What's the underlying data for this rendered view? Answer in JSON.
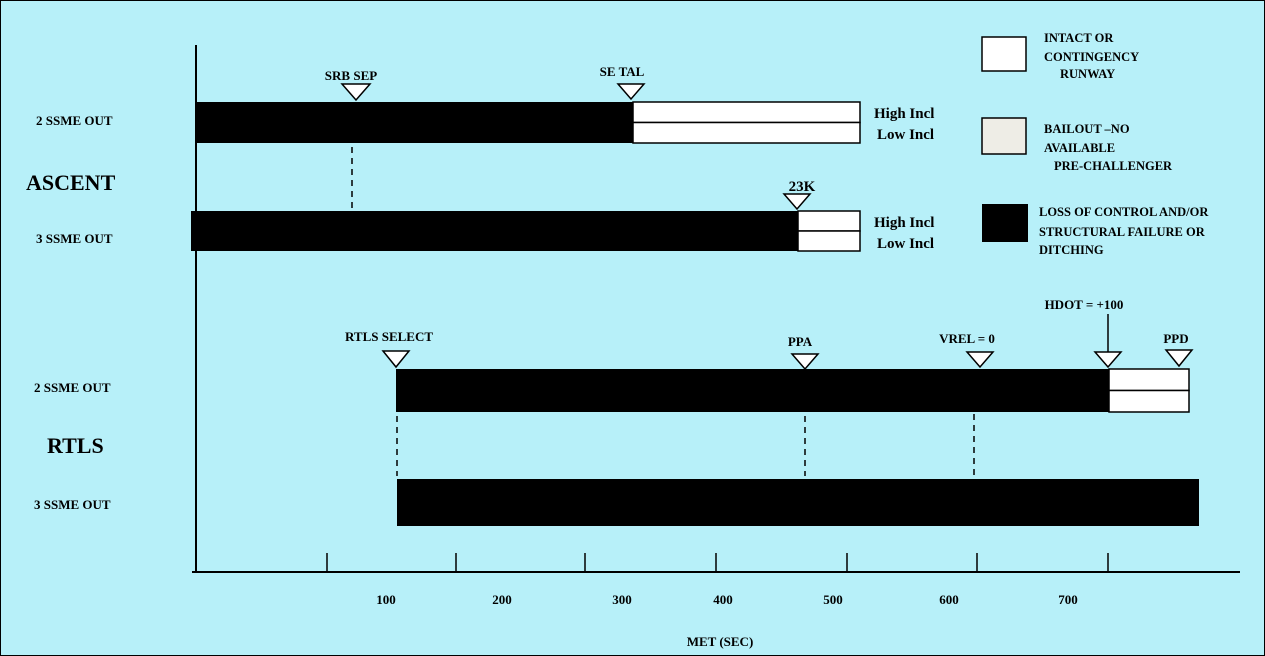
{
  "colors": {
    "background": "#b7f0f9",
    "intact": "#ffffff",
    "bailout": "#eeede6",
    "loss": "#000000"
  },
  "sections": {
    "ascent": {
      "title": "ASCENT",
      "row1_label": "2 SSME OUT",
      "row2_label": "3 SSME OUT",
      "row1_right_top": "High Incl",
      "row1_right_bottom": "Low Incl",
      "row2_right_top": "High Incl",
      "row2_right_bottom": "Low Incl",
      "markers": {
        "srb_sep": "SRB SEP",
        "se_tal": "SE TAL",
        "k23": "23K"
      }
    },
    "rtls": {
      "title": "RTLS",
      "row1_label": "2 SSME OUT",
      "row2_label": "3 SSME OUT",
      "markers": {
        "rtls_select": "RTLS SELECT",
        "ppa": "PPA",
        "vrel": "VREL = 0",
        "hdot": "HDOT = +100",
        "ppd": "PPD"
      }
    }
  },
  "legend": {
    "intact": [
      "INTACT OR",
      "CONTINGENCY",
      "RUNWAY"
    ],
    "bailout": [
      "BAILOUT –NO",
      "AVAILABLE",
      "PRE-CHALLENGER"
    ],
    "loss": [
      "LOSS OF CONTROL AND/OR",
      "STRUCTURAL FAILURE OR",
      "DITCHING"
    ]
  },
  "axis": {
    "title": "MET (SEC)",
    "tick_labels": [
      "100",
      "200",
      "300",
      "400",
      "500",
      "600",
      "700"
    ]
  }
}
